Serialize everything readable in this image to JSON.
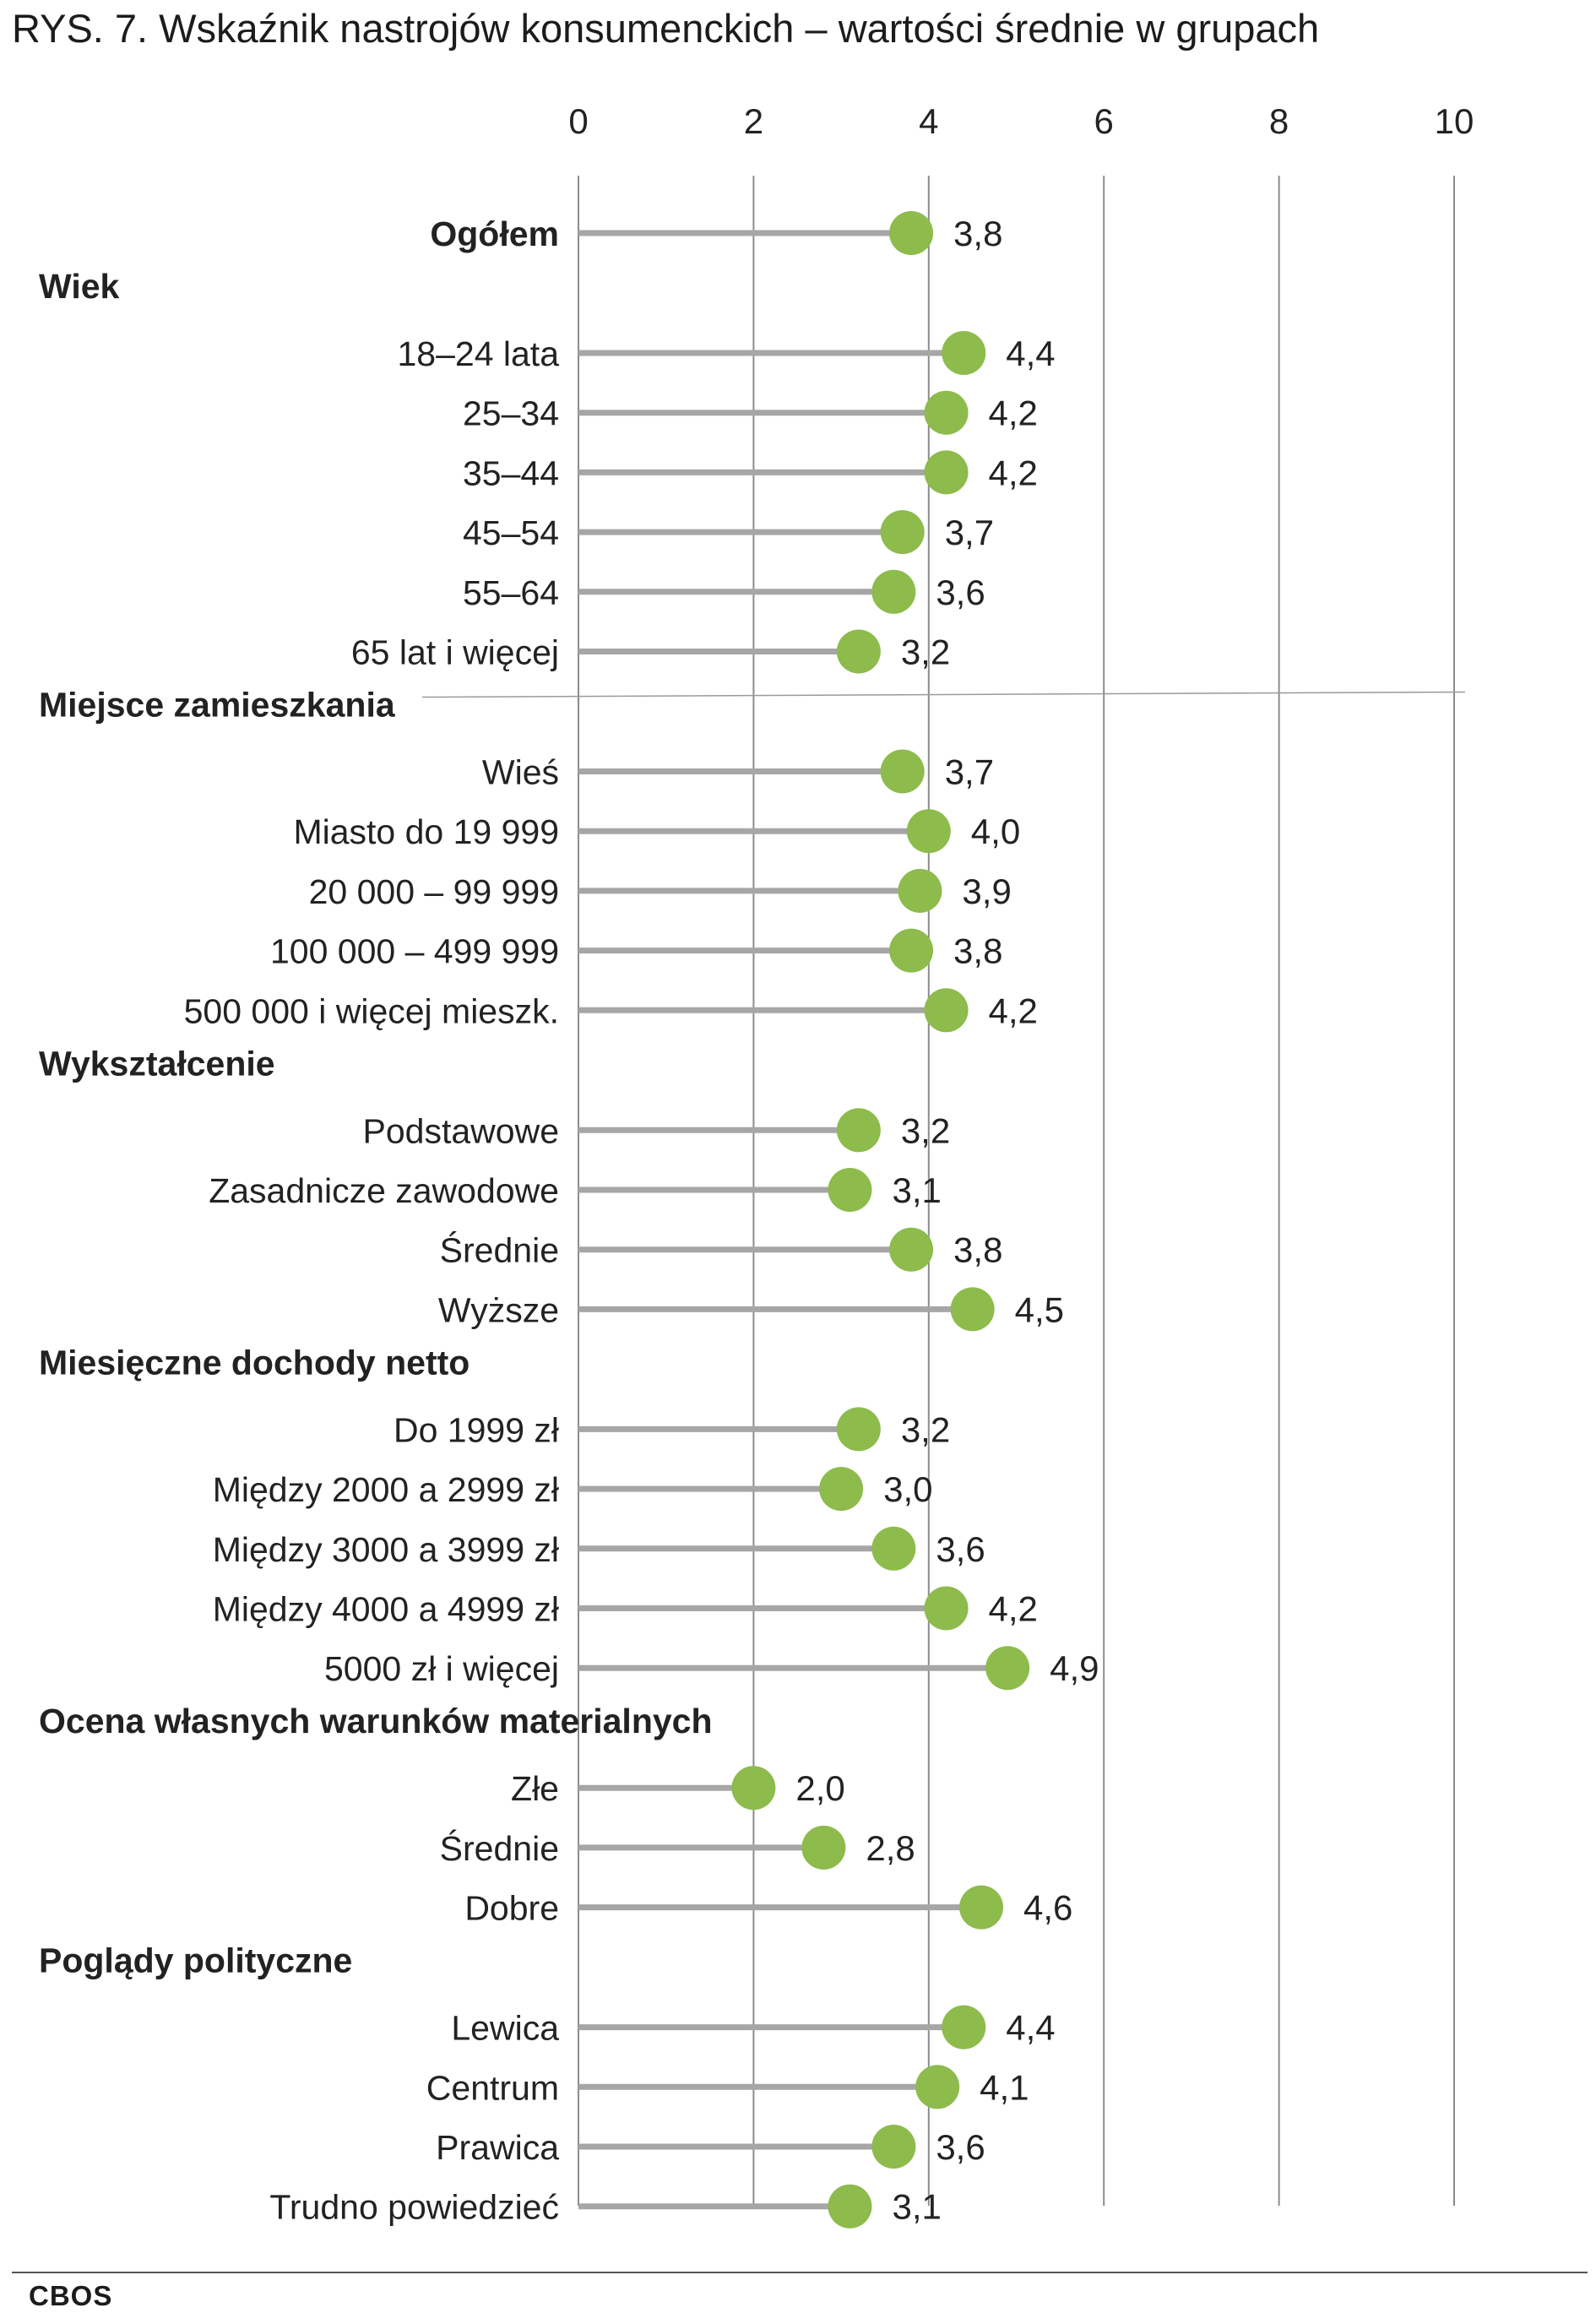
{
  "title": "RYS. 7.  Wskaźnik nastrojów konsumenckich – wartości średnie w grupach",
  "footer": "CBOS",
  "colors": {
    "dot": "#8dbb4c",
    "stem": "#a6a6a6",
    "grid": "#8c8c8c",
    "text": "#222222"
  },
  "chart_data": {
    "type": "dot",
    "xlim": [
      0,
      10
    ],
    "xticks": [
      "0",
      "2",
      "4",
      "6",
      "8",
      "10"
    ],
    "rows": [
      {
        "kind": "item",
        "label": "Ogółem",
        "value": 3.8,
        "value_label": "3,8",
        "bold": true
      },
      {
        "kind": "group",
        "label": "Wiek"
      },
      {
        "kind": "item",
        "label": "18–24 lata",
        "value": 4.4,
        "value_label": "4,4"
      },
      {
        "kind": "item",
        "label": "25–34",
        "value": 4.2,
        "value_label": "4,2"
      },
      {
        "kind": "item",
        "label": "35–44",
        "value": 4.2,
        "value_label": "4,2"
      },
      {
        "kind": "item",
        "label": "45–54",
        "value": 3.7,
        "value_label": "3,7"
      },
      {
        "kind": "item",
        "label": "55–64",
        "value": 3.6,
        "value_label": "3,6"
      },
      {
        "kind": "item",
        "label": "65 lat i więcej",
        "value": 3.2,
        "value_label": "3,2"
      },
      {
        "kind": "group",
        "label": "Miejsce zamieszkania"
      },
      {
        "kind": "item",
        "label": "Wieś",
        "value": 3.7,
        "value_label": "3,7"
      },
      {
        "kind": "item",
        "label": "Miasto do 19 999",
        "value": 4.0,
        "value_label": "4,0"
      },
      {
        "kind": "item",
        "label": "20 000 – 99 999",
        "value": 3.9,
        "value_label": "3,9"
      },
      {
        "kind": "item",
        "label": "100 000 – 499 999",
        "value": 3.8,
        "value_label": "3,8"
      },
      {
        "kind": "item",
        "label": "500 000 i więcej mieszk.",
        "value": 4.2,
        "value_label": "4,2"
      },
      {
        "kind": "group",
        "label": "Wykształcenie"
      },
      {
        "kind": "item",
        "label": "Podstawowe",
        "value": 3.2,
        "value_label": "3,2"
      },
      {
        "kind": "item",
        "label": "Zasadnicze zawodowe",
        "value": 3.1,
        "value_label": "3,1"
      },
      {
        "kind": "item",
        "label": "Średnie",
        "value": 3.8,
        "value_label": "3,8"
      },
      {
        "kind": "item",
        "label": "Wyższe",
        "value": 4.5,
        "value_label": "4,5"
      },
      {
        "kind": "group",
        "label": "Miesięczne dochody netto"
      },
      {
        "kind": "item",
        "label": "Do 1999 zł",
        "value": 3.2,
        "value_label": "3,2"
      },
      {
        "kind": "item",
        "label": "Między 2000 a 2999 zł",
        "value": 3.0,
        "value_label": "3,0"
      },
      {
        "kind": "item",
        "label": "Między 3000 a 3999 zł",
        "value": 3.6,
        "value_label": "3,6"
      },
      {
        "kind": "item",
        "label": "Między 4000 a 4999 zł",
        "value": 4.2,
        "value_label": "4,2"
      },
      {
        "kind": "item",
        "label": "5000 zł i więcej",
        "value": 4.9,
        "value_label": "4,9"
      },
      {
        "kind": "group",
        "label": "Ocena własnych warunków materialnych"
      },
      {
        "kind": "item",
        "label": "Złe",
        "value": 2.0,
        "value_label": "2,0"
      },
      {
        "kind": "item",
        "label": "Średnie",
        "value": 2.8,
        "value_label": "2,8"
      },
      {
        "kind": "item",
        "label": "Dobre",
        "value": 4.6,
        "value_label": "4,6"
      },
      {
        "kind": "group",
        "label": "Poglądy polityczne"
      },
      {
        "kind": "item",
        "label": "Lewica",
        "value": 4.4,
        "value_label": "4,4"
      },
      {
        "kind": "item",
        "label": "Centrum",
        "value": 4.1,
        "value_label": "4,1"
      },
      {
        "kind": "item",
        "label": "Prawica",
        "value": 3.6,
        "value_label": "3,6"
      },
      {
        "kind": "item",
        "label": "Trudno powiedzieć",
        "value": 3.1,
        "value_label": "3,1"
      }
    ]
  }
}
